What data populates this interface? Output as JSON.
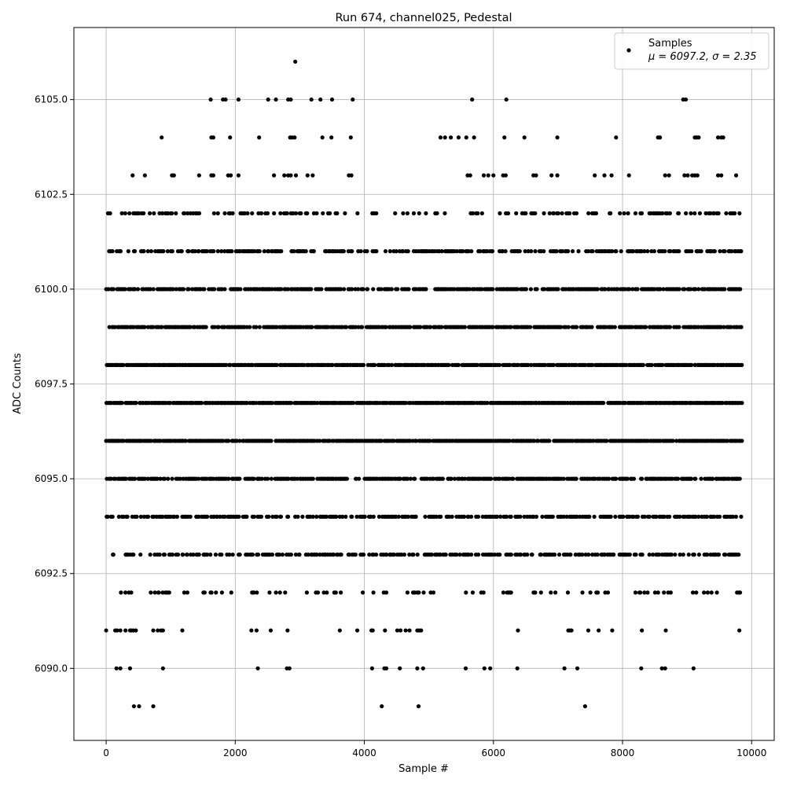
{
  "chart_data": {
    "type": "scatter",
    "title": "Run 674, channel025, Pedestal",
    "xlabel": "Sample #",
    "ylabel": "ADC Counts",
    "xlim": [
      -500,
      10350
    ],
    "ylim": [
      6088.1,
      6106.9
    ],
    "xticks": [
      0,
      2000,
      4000,
      6000,
      8000,
      10000
    ],
    "xtick_labels": [
      "0",
      "2000",
      "4000",
      "6000",
      "8000",
      "10000"
    ],
    "yticks": [
      6090.0,
      6092.5,
      6095.0,
      6097.5,
      6100.0,
      6102.5,
      6105.0
    ],
    "ytick_labels": [
      "6090.0",
      "6092.5",
      "6095.0",
      "6097.5",
      "6100.0",
      "6102.5",
      "6105.0"
    ],
    "grid": true,
    "legend_position": "top-right",
    "series": [
      {
        "name": "Samples",
        "marker": "dot",
        "color": "#000000",
        "levels": [
          {
            "y": 6106,
            "x": [
              2930
            ]
          },
          {
            "y": 6105,
            "x": [
              1620,
              1810,
              1850,
              2050,
              2510,
              2630,
              2820,
              2860,
              3180,
              3320,
              3500,
              3820,
              5670,
              6200,
              8940,
              8980
            ]
          },
          {
            "y": 6104,
            "x": [
              860,
              1630,
              1660,
              1920,
              2370,
              2850,
              2880,
              2920,
              3350,
              3490,
              3790,
              5180,
              5250,
              5340,
              5460,
              5580,
              5700,
              6170,
              6480,
              6990,
              7900,
              8550,
              8580,
              9120,
              9150,
              9180,
              9480,
              9530,
              9560
            ]
          },
          {
            "y": 6103,
            "x": [
              410,
              600,
              1020,
              1050,
              1440,
              1630,
              1660,
              1890,
              1930,
              2050,
              2600,
              2760,
              2820,
              2860,
              2940,
              3120,
              3200,
              3760,
              3800,
              5600,
              5640,
              5850,
              5920,
              6000,
              6150,
              6190,
              6620,
              6660,
              6900,
              6990,
              7570,
              7720,
              7830,
              8100,
              8660,
              8720,
              8960,
              9010,
              9080,
              9120,
              9160,
              9480,
              9530,
              9760
            ]
          }
        ],
        "summary_label": "μ = 6097.2, σ = 2.35",
        "mean": 6097.2,
        "std": 2.35,
        "n_samples": 9850,
        "x_range": [
          0,
          9850
        ],
        "y_values_present": [
          6089,
          6090,
          6091,
          6092,
          6093,
          6094,
          6095,
          6096,
          6097,
          6098,
          6099,
          6100,
          6101,
          6102,
          6103,
          6104,
          6105,
          6106
        ],
        "sparse_points": [
          {
            "y": 6089,
            "x": [
              430,
              510,
              730,
              4270,
              4840,
              7420
            ]
          },
          {
            "y": 6090,
            "x": [
              160,
              220,
              370,
              880,
              2350,
              2800,
              2840,
              4120,
              4310,
              4340,
              4550,
              4820,
              4910,
              5570,
              5860,
              5950,
              6370,
              7100,
              7300,
              8290,
              8610,
              8660,
              9100
            ]
          },
          {
            "y": 6091,
            "x": [
              0,
              140,
              170,
              220,
              300,
              370,
              390,
              420,
              460,
              730,
              800,
              850,
              880,
              1180,
              2250,
              2330,
              2550,
              2810,
              3620,
              3890,
              4110,
              4130,
              4320,
              4510,
              4560,
              4640,
              4700,
              4820,
              4850,
              4880,
              6380,
              7160,
              7190,
              7210,
              7470,
              7630,
              7840,
              8300,
              8670,
              9810
            ]
          }
        ]
      }
    ]
  }
}
